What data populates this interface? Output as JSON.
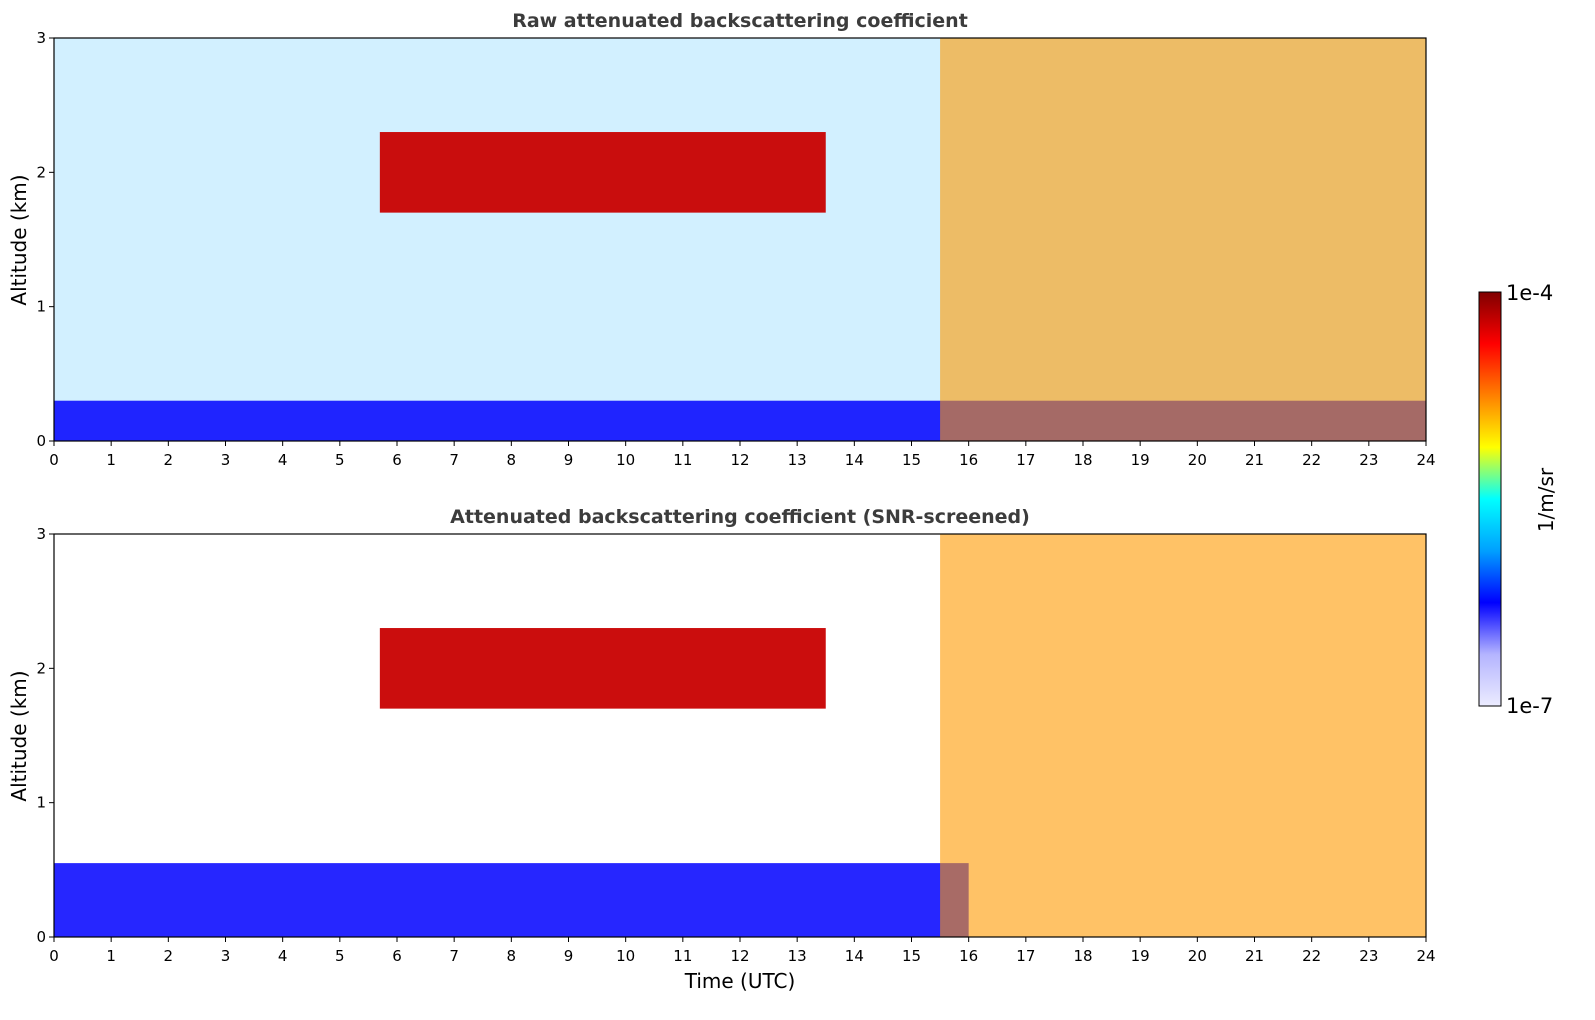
{
  "chart_data": [
    {
      "type": "heatmap",
      "title": "Raw attenuated backscattering coefficient",
      "xlabel": "",
      "ylabel": "Altitude (km)",
      "xlim": [
        0,
        24
      ],
      "ylim": [
        0,
        3
      ],
      "x_ticks": [
        "0",
        "1",
        "2",
        "3",
        "4",
        "5",
        "6",
        "7",
        "8",
        "9",
        "10",
        "11",
        "12",
        "13",
        "14",
        "15",
        "16",
        "17",
        "18",
        "19",
        "20",
        "21",
        "22",
        "23",
        "24"
      ],
      "y_ticks": [
        "0",
        "1",
        "2",
        "3"
      ],
      "features": [
        {
          "description": "surface aerosol layer",
          "x": [
            0,
            24
          ],
          "y": [
            0,
            0.3
          ]
        },
        {
          "description": "scattered cloud fragments",
          "x": [
            5.7,
            13.5
          ],
          "y": [
            1.7,
            2.3
          ]
        },
        {
          "description": "dense cloud and precipitation",
          "x": [
            15.5,
            24
          ],
          "y": [
            0,
            3
          ]
        }
      ]
    },
    {
      "type": "heatmap",
      "title": "Attenuated backscattering coefficient (SNR-screened)",
      "xlabel": "Time (UTC)",
      "ylabel": "Altitude (km)",
      "xlim": [
        0,
        24
      ],
      "ylim": [
        0,
        3
      ],
      "x_ticks": [
        "0",
        "1",
        "2",
        "3",
        "4",
        "5",
        "6",
        "7",
        "8",
        "9",
        "10",
        "11",
        "12",
        "13",
        "14",
        "15",
        "16",
        "17",
        "18",
        "19",
        "20",
        "21",
        "22",
        "23",
        "24"
      ],
      "y_ticks": [
        "0",
        "1",
        "2",
        "3"
      ],
      "features": [
        {
          "description": "surface aerosol layer",
          "x": [
            0,
            16
          ],
          "y": [
            0,
            0.55
          ]
        },
        {
          "description": "scattered cloud fragments",
          "x": [
            5.7,
            13.5
          ],
          "y": [
            1.7,
            2.3
          ]
        },
        {
          "description": "dense cloud and precipitation",
          "x": [
            15.5,
            24
          ],
          "y": [
            0,
            3
          ]
        }
      ]
    }
  ],
  "colorbar": {
    "label": "1/m/sr",
    "max_label": "1e-4",
    "min_label": "1e-7",
    "scale": "log",
    "colors": [
      "#ececff",
      "#b4b4ff",
      "#0000ff",
      "#00a0ff",
      "#00ffff",
      "#ffff00",
      "#ff8000",
      "#ff0000",
      "#800000"
    ]
  }
}
